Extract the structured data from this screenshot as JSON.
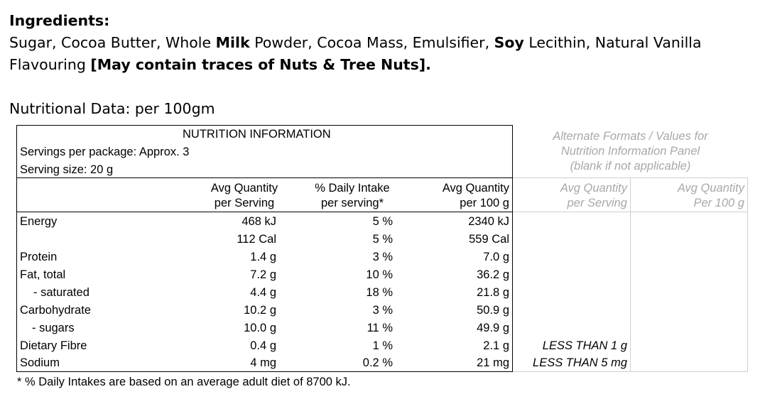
{
  "ingredients": {
    "title": "Ingredients:",
    "line1": [
      {
        "text": "Sugar, Cocoa Butter, Whole ",
        "bold": false
      },
      {
        "text": "Milk",
        "bold": true
      },
      {
        "text": " Powder, Cocoa Mass, Emulsifier, ",
        "bold": false
      },
      {
        "text": "Soy",
        "bold": true
      },
      {
        "text": " Lecithin, Natural Vanilla",
        "bold": false
      }
    ],
    "line2": [
      {
        "text": "Flavouring ",
        "bold": false
      },
      {
        "text": "[May contain traces of Nuts & Tree Nuts].",
        "bold": true
      }
    ]
  },
  "nutritional_heading": "Nutritional Data: per 100gm",
  "panel": {
    "title": "NUTRITION INFORMATION",
    "servings_per_package": "Servings per package: Approx. 3",
    "serving_size": "Serving size: 20 g",
    "col_serving_l1": "Avg Quantity",
    "col_serving_l2": "per Serving",
    "col_di_l1": "% Daily Intake",
    "col_di_l2": "per serving*",
    "col_100_l1": "Avg Quantity",
    "col_100_l2": "per 100 g",
    "alt_title_l1": "Alternate Formats / Values for",
    "alt_title_l2": "Nutrition Information Panel",
    "alt_title_l3": "(blank if not applicable)",
    "alt_col1_l1": "Avg Quantity",
    "alt_col1_l2": "per Serving",
    "alt_col2_l1": "Avg Quantity",
    "alt_col2_l2": "Per 100 g",
    "rows": [
      {
        "label": "Energy",
        "serving": "468 kJ",
        "di": "5 %",
        "per100": "2340 kJ",
        "alt": ""
      },
      {
        "label": "",
        "serving": "112 Cal",
        "di": "5 %",
        "per100": "559 Cal",
        "alt": ""
      },
      {
        "label": "Protein",
        "serving": "1.4 g",
        "di": "3 %",
        "per100": "7.0 g",
        "alt": ""
      },
      {
        "label": "Fat, total",
        "serving": "7.2 g",
        "di": "10 %",
        "per100": "36.2 g",
        "alt": ""
      },
      {
        "label": "- saturated",
        "serving": "4.4 g",
        "di": "18 %",
        "per100": "21.8 g",
        "alt": ""
      },
      {
        "label": "Carbohydrate",
        "serving": "10.2 g",
        "di": "3 %",
        "per100": "50.9 g",
        "alt": ""
      },
      {
        "label": "- sugars",
        "serving": "10.0 g",
        "di": "11 %",
        "per100": "49.9 g",
        "alt": ""
      },
      {
        "label": "Dietary Fibre",
        "serving": "0.4 g",
        "di": "1 %",
        "per100": "2.1 g",
        "alt": "LESS THAN 1 g"
      },
      {
        "label": "Sodium",
        "serving": "4 mg",
        "di": "0.2 %",
        "per100": "21 mg",
        "alt": "LESS THAN 5 mg"
      }
    ]
  },
  "footnote": "* % Daily Intakes are based on an average adult diet of 8700 kJ."
}
